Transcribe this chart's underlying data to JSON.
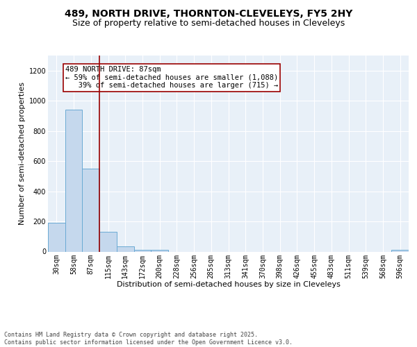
{
  "title1": "489, NORTH DRIVE, THORNTON-CLEVELEYS, FY5 2HY",
  "title2": "Size of property relative to semi-detached houses in Cleveleys",
  "xlabel": "Distribution of semi-detached houses by size in Cleveleys",
  "ylabel": "Number of semi-detached properties",
  "categories": [
    "30sqm",
    "58sqm",
    "87sqm",
    "115sqm",
    "143sqm",
    "172sqm",
    "200sqm",
    "228sqm",
    "256sqm",
    "285sqm",
    "313sqm",
    "341sqm",
    "370sqm",
    "398sqm",
    "426sqm",
    "455sqm",
    "483sqm",
    "511sqm",
    "539sqm",
    "568sqm",
    "596sqm"
  ],
  "values": [
    190,
    940,
    550,
    130,
    35,
    10,
    10,
    0,
    0,
    0,
    0,
    0,
    0,
    0,
    0,
    0,
    0,
    0,
    0,
    0,
    10
  ],
  "bar_color": "#c5d8ed",
  "bar_edge_color": "#6aaad4",
  "red_line_index": 2,
  "red_line_color": "#990000",
  "annotation_line1": "489 NORTH DRIVE: 87sqm",
  "annotation_line2": "← 59% of semi-detached houses are smaller (1,088)",
  "annotation_line3": "   39% of semi-detached houses are larger (715) →",
  "annotation_box_facecolor": "#ffffff",
  "annotation_box_edgecolor": "#990000",
  "ylim_max": 1300,
  "yticks": [
    0,
    200,
    400,
    600,
    800,
    1000,
    1200
  ],
  "background_color": "#e8f0f8",
  "grid_color": "#ffffff",
  "footer_line1": "Contains HM Land Registry data © Crown copyright and database right 2025.",
  "footer_line2": "Contains public sector information licensed under the Open Government Licence v3.0.",
  "title1_fontsize": 10,
  "title2_fontsize": 9,
  "xlabel_fontsize": 8,
  "ylabel_fontsize": 8,
  "tick_fontsize": 7,
  "annotation_fontsize": 7.5,
  "footer_fontsize": 6
}
